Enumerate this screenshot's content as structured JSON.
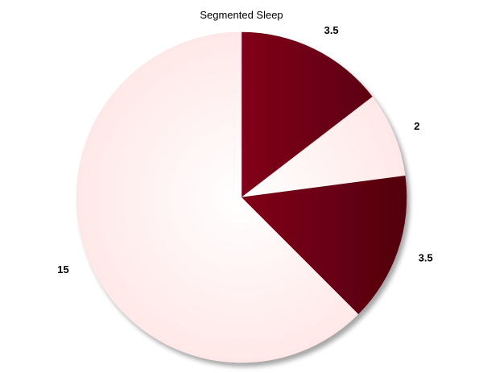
{
  "chart_data": {
    "type": "pie",
    "title": "Segmented Sleep",
    "values": [
      3.5,
      2,
      3.5,
      15
    ],
    "labels": [
      "3.5",
      "2",
      "3.5",
      "15"
    ],
    "colors": [
      "#7a0014",
      "#fff0f0",
      "#7a0014",
      "#fff0f0"
    ],
    "start": "12 o'clock",
    "direction": "clockwise",
    "legend": "none"
  }
}
